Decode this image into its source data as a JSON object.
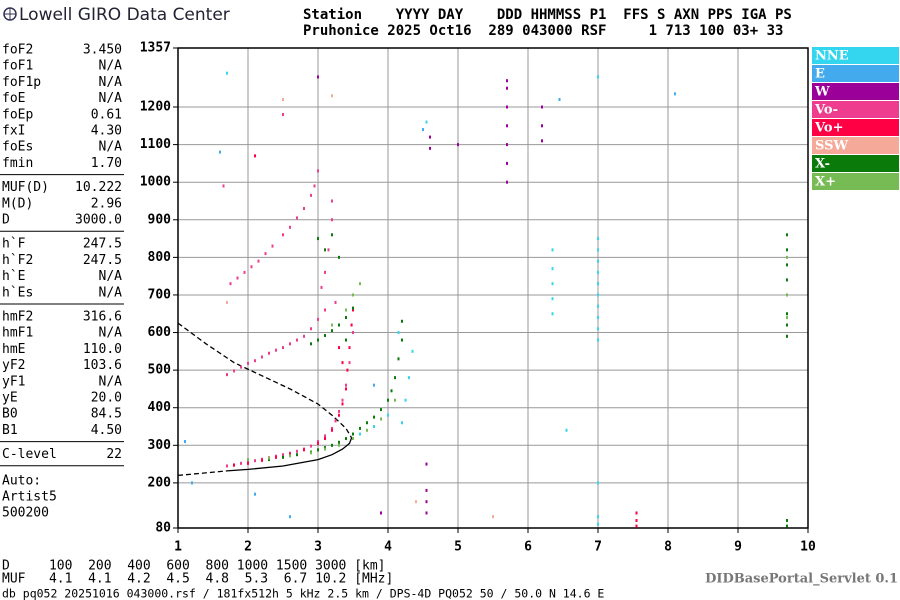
{
  "header": {
    "title": "Lowell GIRO Data Center",
    "station_line1": "Station    YYYY DAY    DDD HHMMSS P1  FFS S AXN PPS IGA PS",
    "station_line2": "Pruhonice 2025 Oct16  289 043000 RSF     1 713 100 03+ 33"
  },
  "parameters": [
    [
      [
        "foF2",
        "3.450"
      ],
      [
        "foF1",
        "N/A"
      ],
      [
        "foF1p",
        "N/A"
      ],
      [
        "foE",
        "N/A"
      ],
      [
        "foEp",
        "0.61"
      ],
      [
        "fxI",
        "4.30"
      ],
      [
        "foEs",
        "N/A"
      ],
      [
        "fmin",
        "1.70"
      ]
    ],
    [
      [
        "MUF(D)",
        "10.222"
      ],
      [
        "M(D)",
        "2.96"
      ],
      [
        "D",
        "3000.0"
      ]
    ],
    [
      [
        "h`F",
        "247.5"
      ],
      [
        "h`F2",
        "247.5"
      ],
      [
        "h`E",
        "N/A"
      ],
      [
        "h`Es",
        "N/A"
      ]
    ],
    [
      [
        "hmF2",
        "316.6"
      ],
      [
        "hmF1",
        "N/A"
      ],
      [
        "hmE",
        "110.0"
      ],
      [
        "yF2",
        "103.6"
      ],
      [
        "yF1",
        "N/A"
      ],
      [
        "yE",
        "20.0"
      ],
      [
        "B0",
        "84.5"
      ],
      [
        "B1",
        "4.50"
      ]
    ],
    [
      [
        "C-level",
        "22"
      ]
    ]
  ],
  "autoscaling": [
    "Auto:",
    "Artist5",
    "500200"
  ],
  "chart_data": {
    "type": "scatter",
    "xlim": [
      1,
      10
    ],
    "xticks": [
      1,
      2,
      3,
      4,
      5,
      6,
      7,
      8,
      9,
      10
    ],
    "ylim": [
      80,
      1357
    ],
    "yticks": [
      80,
      200,
      300,
      400,
      500,
      600,
      700,
      800,
      900,
      1000,
      1100,
      1200,
      1357
    ],
    "grid": true,
    "legend": "right",
    "series": [
      {
        "name": "NNE",
        "color": "#33d6ee",
        "x": [
          7.0,
          7.0,
          7.0,
          7.0,
          7.0,
          7.0,
          7.0,
          7.0,
          7.0,
          7.0,
          6.35,
          6.35,
          6.35,
          6.35,
          6.35,
          7.0,
          7.0,
          7.0,
          4.2,
          4.25,
          4.3,
          4.35,
          4.15,
          3.6,
          3.8,
          4.0,
          7.0,
          6.55,
          1.7,
          4.55
        ],
        "values": [
          580,
          610,
          640,
          670,
          700,
          730,
          760,
          790,
          820,
          850,
          650,
          690,
          730,
          770,
          820,
          90,
          110,
          200,
          360,
          420,
          480,
          550,
          600,
          330,
          350,
          380,
          1280,
          340,
          1290,
          1160
        ]
      },
      {
        "name": "E",
        "color": "#44aaee",
        "x": [
          1.2,
          1.6,
          2.1,
          3.8,
          4.5,
          6.45,
          8.1,
          2.6,
          1.1
        ],
        "values": [
          200,
          1080,
          170,
          460,
          1140,
          1220,
          1235,
          110,
          310
        ]
      },
      {
        "name": "W",
        "color": "#9b0099",
        "x": [
          5.7,
          5.7,
          5.7,
          5.7,
          5.7,
          5.7,
          5.7,
          6.2,
          6.2,
          6.2,
          4.55,
          4.55,
          4.55,
          4.55,
          3.0,
          4.6,
          4.6,
          5.0,
          3.9
        ],
        "values": [
          1000,
          1050,
          1100,
          1150,
          1200,
          1250,
          1270,
          1110,
          1150,
          1200,
          120,
          150,
          180,
          250,
          1280,
          1090,
          1120,
          1100,
          120
        ]
      },
      {
        "name": "Vo-",
        "color": "#ee3d8f",
        "x": [
          1.7,
          1.8,
          1.9,
          2.0,
          2.1,
          2.2,
          2.3,
          2.4,
          2.5,
          2.6,
          2.7,
          2.8,
          2.9,
          3.0,
          3.1,
          3.2,
          3.25,
          3.3,
          3.35,
          3.4,
          3.45,
          3.5,
          1.7,
          1.8,
          1.9,
          2.0,
          2.1,
          2.2,
          2.3,
          2.4,
          2.5,
          2.6,
          2.7,
          2.8,
          2.9,
          3.0,
          3.1,
          1.75,
          1.85,
          1.95,
          2.05,
          2.15,
          2.25,
          2.35,
          2.5,
          2.6,
          2.7,
          2.8,
          2.9,
          2.95,
          3.0,
          3.05,
          3.1,
          3.15,
          3.2,
          3.2,
          3.25,
          2.5,
          1.65
        ],
        "values": [
          245,
          248,
          252,
          256,
          259,
          263,
          267,
          271,
          275,
          279,
          284,
          290,
          298,
          310,
          325,
          345,
          365,
          390,
          420,
          460,
          520,
          600,
          488,
          498,
          508,
          518,
          525,
          535,
          545,
          553,
          560,
          570,
          580,
          590,
          610,
          635,
          660,
          730,
          745,
          760,
          775,
          790,
          810,
          830,
          860,
          880,
          905,
          930,
          965,
          990,
          1030,
          720,
          760,
          820,
          900,
          950,
          680,
          1180,
          990
        ]
      },
      {
        "name": "Vo+",
        "color": "#ff0044",
        "x": [
          1.8,
          2.0,
          2.2,
          2.4,
          2.6,
          2.8,
          3.0,
          3.1,
          3.2,
          3.3,
          3.35,
          3.4,
          3.42,
          3.45,
          3.48,
          3.5,
          3.3,
          3.35,
          7.55,
          7.55,
          7.55,
          2.1
        ],
        "values": [
          247,
          252,
          260,
          268,
          276,
          288,
          305,
          318,
          340,
          380,
          410,
          450,
          500,
          560,
          620,
          660,
          560,
          520,
          85,
          100,
          120,
          1070
        ]
      },
      {
        "name": "SSW",
        "color": "#f5aa99",
        "x": [
          1.7,
          2.5,
          5.5,
          4.4,
          3.2
        ],
        "values": [
          680,
          1220,
          110,
          150,
          1230
        ]
      },
      {
        "name": "X-",
        "color": "#0a7a0a",
        "x": [
          2.3,
          2.5,
          2.7,
          2.9,
          3.0,
          3.1,
          3.2,
          3.3,
          3.4,
          3.5,
          3.6,
          3.7,
          3.8,
          3.9,
          4.0,
          4.05,
          4.1,
          4.15,
          4.2,
          4.2,
          2.9,
          3.0,
          3.1,
          3.2,
          3.3,
          3.4,
          3.5,
          3.0,
          3.1,
          3.2,
          3.3,
          9.7,
          9.7,
          9.7,
          9.7,
          9.7,
          9.7,
          9.7,
          9.7,
          9.7,
          9.7,
          3.4
        ],
        "values": [
          262,
          268,
          275,
          282,
          288,
          294,
          300,
          308,
          318,
          330,
          345,
          360,
          375,
          395,
          420,
          445,
          480,
          530,
          580,
          630,
          570,
          580,
          592,
          605,
          620,
          640,
          665,
          850,
          820,
          860,
          800,
          590,
          620,
          650,
          700,
          740,
          780,
          820,
          860,
          85,
          100,
          580
        ]
      },
      {
        "name": "X+",
        "color": "#77bb55",
        "x": [
          2.0,
          2.3,
          2.6,
          2.9,
          3.1,
          3.3,
          3.5,
          3.7,
          3.9,
          4.1,
          3.2,
          3.4,
          3.5,
          3.6,
          9.7,
          9.7,
          9.7
        ],
        "values": [
          262,
          266,
          272,
          280,
          290,
          300,
          318,
          340,
          370,
          420,
          620,
          660,
          700,
          730,
          640,
          700,
          800
        ]
      }
    ],
    "profile_curves": [
      {
        "color": "#000000",
        "dashed": true,
        "x": [
          1.0,
          1.4,
          1.8,
          2.2,
          2.6,
          3.0,
          3.2,
          3.4,
          3.48
        ],
        "values": [
          625,
          570,
          520,
          485,
          450,
          410,
          380,
          345,
          320
        ]
      },
      {
        "color": "#000000",
        "dashed": true,
        "x": [
          1.0,
          1.3,
          1.7
        ],
        "values": [
          220,
          225,
          232
        ]
      },
      {
        "color": "#000000",
        "dashed": false,
        "x": [
          1.7,
          2.0,
          2.5,
          3.0,
          3.2,
          3.35,
          3.45,
          3.48
        ],
        "values": [
          232,
          236,
          245,
          262,
          275,
          290,
          305,
          320
        ]
      }
    ]
  },
  "footer": {
    "distance_line": "D     100  200  400  600  800 1000 1500 3000 [km]",
    "muf_line": "MUF   4.1  4.1  4.2  4.5  4.8  5.3  6.7 10.2 [MHz]",
    "servlet": "DIDBasePortal_Servlet 0.1",
    "file_info": "db pq052 20251016 043000.rsf / 181fx512h 5 kHz 2.5 km / DPS-4D PQ052 50 / 50.0 N 14.6 E"
  }
}
